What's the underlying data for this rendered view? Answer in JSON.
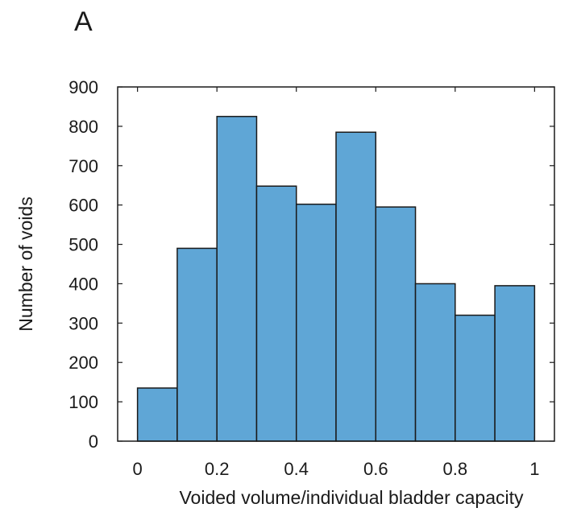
{
  "panel_label": "A",
  "chart_data": {
    "type": "bar",
    "title": "",
    "xlabel": "Voided volume/individual bladder capacity",
    "ylabel": "Number of voids",
    "bins": [
      [
        0.0,
        0.1
      ],
      [
        0.1,
        0.2
      ],
      [
        0.2,
        0.3
      ],
      [
        0.3,
        0.4
      ],
      [
        0.4,
        0.5
      ],
      [
        0.5,
        0.6
      ],
      [
        0.6,
        0.7
      ],
      [
        0.7,
        0.8
      ],
      [
        0.8,
        0.9
      ],
      [
        0.9,
        1.0
      ]
    ],
    "values": [
      135,
      490,
      825,
      648,
      602,
      785,
      595,
      400,
      320,
      395
    ],
    "xlim": [
      -0.05,
      1.05
    ],
    "ylim": [
      0,
      900
    ],
    "xticks": [
      0,
      0.2,
      0.4,
      0.6,
      0.8,
      1
    ],
    "xtick_labels": [
      "0",
      "0.2",
      "0.4",
      "0.6",
      "0.8",
      "1"
    ],
    "yticks": [
      0,
      100,
      200,
      300,
      400,
      500,
      600,
      700,
      800,
      900
    ],
    "ytick_labels": [
      "0",
      "100",
      "200",
      "300",
      "400",
      "500",
      "600",
      "700",
      "800",
      "900"
    ],
    "grid": false,
    "bar_color": "#5fa6d6",
    "bar_edge_color": "#1a1a1a"
  }
}
